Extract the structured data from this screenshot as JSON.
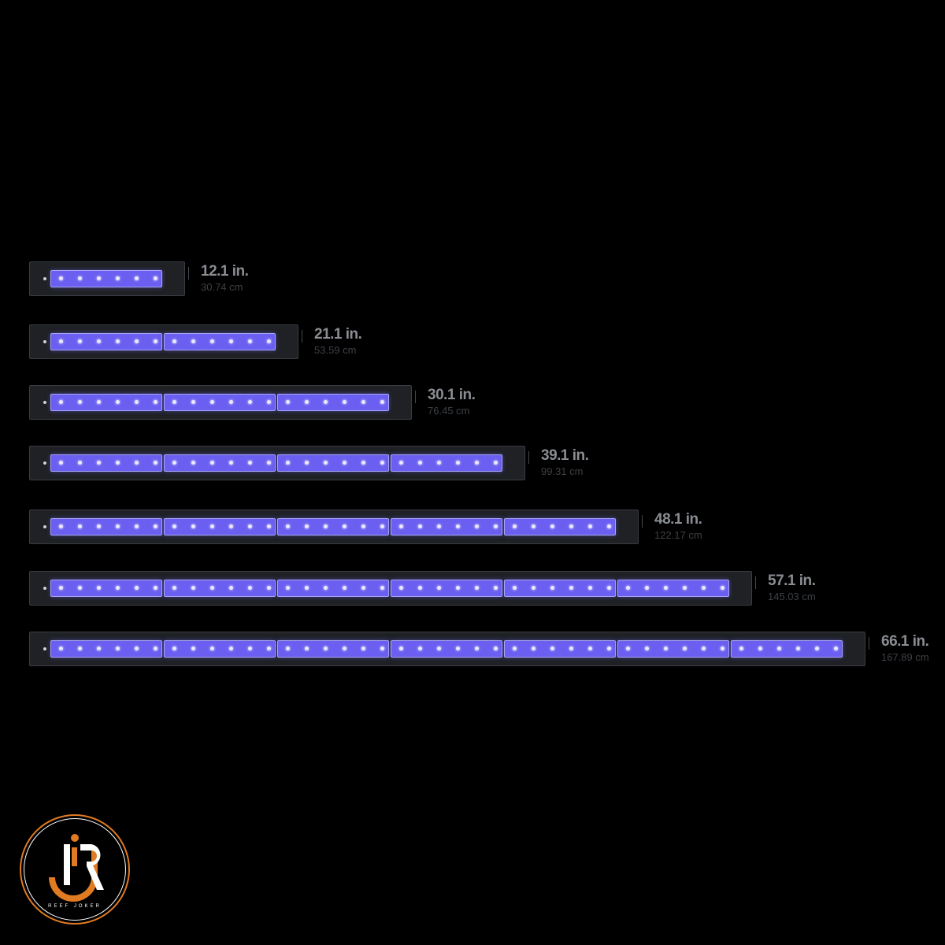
{
  "accent_color": "#6a5ff0",
  "bars": [
    {
      "modules": 1,
      "inches": "12.1 in.",
      "cm": "30.74 cm"
    },
    {
      "modules": 2,
      "inches": "21.1 in.",
      "cm": "53.59 cm"
    },
    {
      "modules": 3,
      "inches": "30.1 in.",
      "cm": "76.45 cm"
    },
    {
      "modules": 4,
      "inches": "39.1 in.",
      "cm": "99.31 cm"
    },
    {
      "modules": 5,
      "inches": "48.1 in.",
      "cm": "122.17 cm"
    },
    {
      "modules": 6,
      "inches": "57.1 in.",
      "cm": "145.03 cm"
    },
    {
      "modules": 7,
      "inches": "66.1 in.",
      "cm": "167.89 cm"
    }
  ],
  "logo": {
    "text": "REEF JOKER",
    "letters": "JR",
    "primary_color": "#e07b22"
  }
}
